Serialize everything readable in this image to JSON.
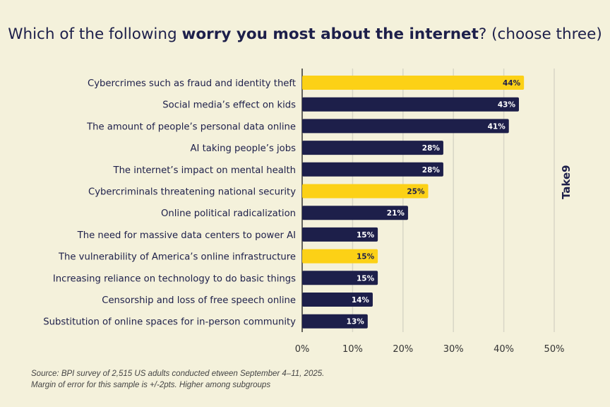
{
  "title": {
    "prefix": "Which of the following ",
    "bold": "worry you most about the internet",
    "suffix": "? (choose three)"
  },
  "logo": "Take9",
  "source": [
    "Source: BPI survey of 2,515 US adults conducted etween September 4–11, 2025.",
    "Margin of error for this sample is +/-2pts. Higher among subgroups"
  ],
  "colors": {
    "background": "#f4f1db",
    "navy": "#1d1f4a",
    "highlight": "#fcd116",
    "grid": "#d8d6c6"
  },
  "chart_data": {
    "type": "bar",
    "orientation": "horizontal",
    "categories": [
      "Cybercrimes such as fraud and identity theft",
      "Social media’s effect on kids",
      "The amount of people’s personal data  online",
      "AI taking people’s jobs",
      "The internet’s impact on mental health",
      "Cybercriminals threatening national security",
      "Online political radicalization",
      "The need for massive data centers to power AI",
      "The vulnerability of America’s online infrastructure",
      "Increasing reliance on technology to do basic things",
      "Censorship and loss of free speech online",
      "Substitution of online spaces for in-person community"
    ],
    "values": [
      44,
      43,
      41,
      28,
      28,
      25,
      21,
      15,
      15,
      15,
      14,
      13
    ],
    "highlighted": [
      true,
      false,
      false,
      false,
      false,
      true,
      false,
      false,
      true,
      false,
      false,
      false
    ],
    "data_labels": [
      "44%",
      "43%",
      "41%",
      "28%",
      "28%",
      "25%",
      "21%",
      "15%",
      "15%",
      "15%",
      "14%",
      "13%"
    ],
    "xlim": [
      0,
      50
    ],
    "xticks": [
      "0%",
      "10%",
      "20%",
      "30%",
      "40%",
      "50%"
    ],
    "grid": true
  }
}
